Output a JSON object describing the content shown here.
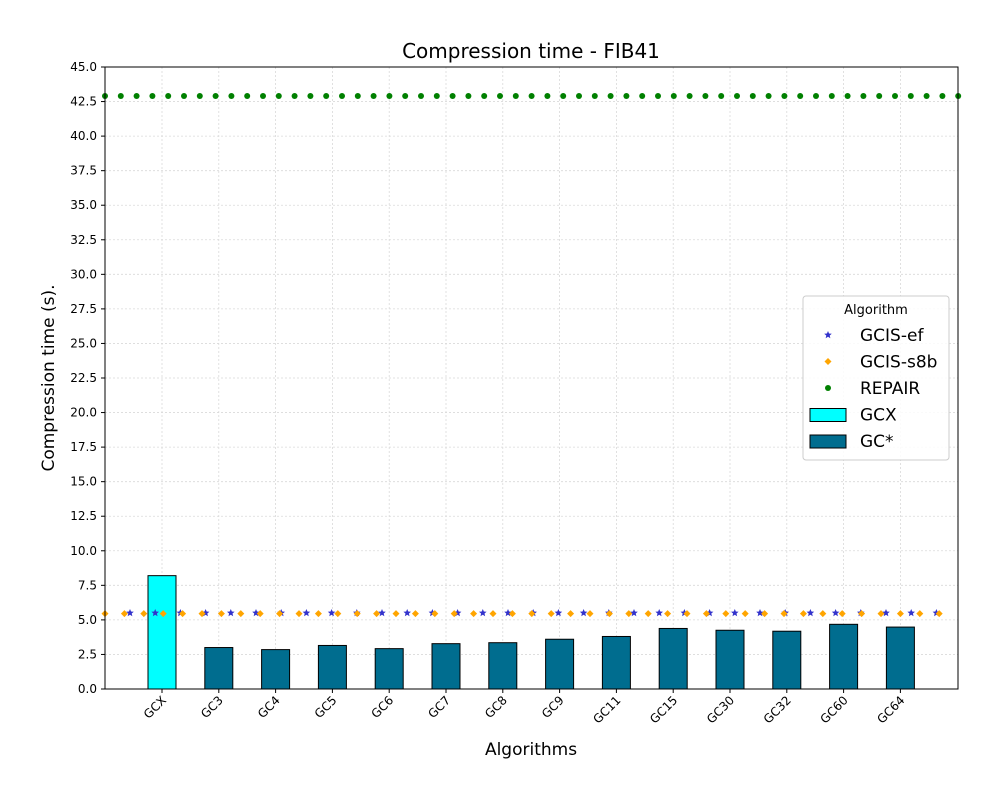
{
  "chart_data": {
    "type": "bar",
    "title": "Compression time -  FIB41",
    "xlabel": "Algorithms",
    "ylabel": "Compression time (s).",
    "ylim": [
      0,
      45
    ],
    "yticks": [
      "0.0",
      "2.5",
      "5.0",
      "7.5",
      "10.0",
      "12.5",
      "15.0",
      "17.5",
      "20.0",
      "22.5",
      "25.0",
      "27.5",
      "30.0",
      "32.5",
      "35.0",
      "37.5",
      "40.0",
      "42.5",
      "45.0"
    ],
    "categories": [
      "GCX",
      "GC3",
      "GC4",
      "GC5",
      "GC6",
      "GC7",
      "GC8",
      "GC9",
      "GC11",
      "GC15",
      "GC30",
      "GC32",
      "GC60",
      "GC64"
    ],
    "bar_series": [
      {
        "name": "GCX",
        "color": "#00ffff",
        "values": [
          8.2,
          null,
          null,
          null,
          null,
          null,
          null,
          null,
          null,
          null,
          null,
          null,
          null,
          null
        ]
      },
      {
        "name": "GC*",
        "color": "#006d8f",
        "values": [
          null,
          3.0,
          2.85,
          3.15,
          2.92,
          3.28,
          3.35,
          3.6,
          3.8,
          4.38,
          4.25,
          4.18,
          4.68,
          4.48
        ]
      }
    ],
    "reference_series": [
      {
        "name": "GCIS-ef",
        "value": 5.5,
        "marker": "star",
        "color": "#3333cc"
      },
      {
        "name": "GCIS-s8b",
        "value": 5.45,
        "marker": "diamond",
        "color": "#ffa500"
      },
      {
        "name": "REPAIR",
        "value": 42.9,
        "marker": "circle",
        "color": "#008000"
      }
    ],
    "legend": {
      "title": "Algorithm",
      "position": "center-right"
    },
    "grid": true
  }
}
